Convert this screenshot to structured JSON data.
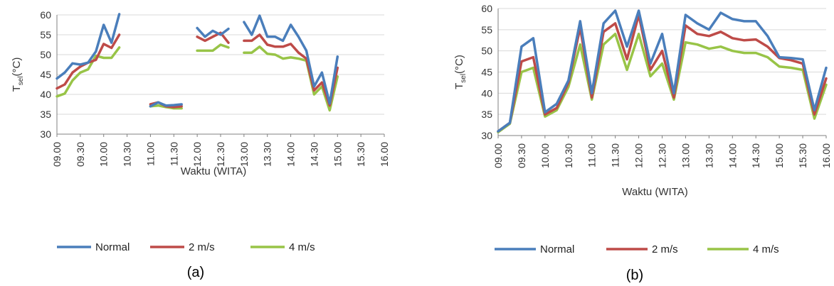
{
  "colors": {
    "normal": "#4a7ebb",
    "v2": "#be4b48",
    "v4": "#98c447",
    "grid": "#d9d9d9",
    "axis": "#808080"
  },
  "legend": [
    "Normal",
    "2 m/s",
    "4 m/s"
  ],
  "chart_data": [
    {
      "type": "line",
      "caption": "(a)",
      "xlabel": "Waktu (WITA)",
      "ylabel": "T",
      "ylabel_sub": "sel",
      "ylabel_unit": "(°C)",
      "ylim": [
        30,
        60
      ],
      "yticks": [
        30,
        35,
        40,
        45,
        50,
        55,
        60
      ],
      "grid": true,
      "legend_position": "bottom",
      "x_ticks": [
        "09.00",
        "09.30",
        "10.00",
        "10.30",
        "11.00",
        "11.30",
        "12.00",
        "12.30",
        "13.00",
        "13.30",
        "14.00",
        "14.30",
        "15.00",
        "15.30",
        "16.00"
      ],
      "x": [
        "09.00",
        "09.10",
        "09.20",
        "09.30",
        "09.40",
        "09.50",
        "10.00",
        "10.10",
        "10.20",
        "10.30",
        "10.40",
        "10.50",
        "11.00",
        "11.10",
        "11.20",
        "11.30",
        "11.40",
        "11.50",
        "12.00",
        "12.10",
        "12.20",
        "12.30",
        "12.40",
        "12.50",
        "13.00",
        "13.10",
        "13.20",
        "13.30",
        "13.40",
        "13.50",
        "14.00",
        "14.10",
        "14.20",
        "14.30",
        "14.40",
        "14.50",
        "15.00",
        "15.10",
        "15.20",
        "15.30",
        "15.40",
        "15.50",
        "16.00"
      ],
      "series": [
        {
          "name": "Normal",
          "values": [
            44,
            45.5,
            47.8,
            47.5,
            48,
            50.8,
            57.5,
            53,
            60.2,
            null,
            null,
            null,
            37,
            38,
            37.2,
            37.3,
            37.5,
            null,
            56.7,
            54.5,
            56,
            55,
            56.5,
            null,
            58.2,
            55,
            59.8,
            54.5,
            54.5,
            53.5,
            57.5,
            54.5,
            51,
            42,
            45.5,
            37.7,
            49.5,
            null,
            null,
            null,
            null,
            null,
            null
          ]
        },
        {
          "name": "2 m/s",
          "values": [
            41.5,
            42.5,
            45.5,
            47,
            48,
            48.7,
            52.7,
            51.7,
            55,
            null,
            null,
            null,
            37.5,
            38,
            37,
            36.8,
            37,
            null,
            54.5,
            53.5,
            54.5,
            55.5,
            53,
            null,
            53.5,
            53.5,
            55,
            52.5,
            52,
            52,
            52.7,
            50.5,
            49,
            41,
            43,
            37.2,
            46.7,
            null,
            null,
            null,
            null,
            null,
            null
          ]
        },
        {
          "name": "4 m/s",
          "values": [
            39.5,
            40.2,
            43.5,
            45.5,
            46.3,
            49.7,
            49.2,
            49.2,
            51.8,
            null,
            null,
            null,
            37,
            37.2,
            36.8,
            36.5,
            36.5,
            null,
            51,
            51,
            51,
            52.5,
            51.8,
            null,
            50.5,
            50.5,
            52,
            50.2,
            50,
            49,
            49.3,
            49,
            48.5,
            40,
            42,
            36,
            44.5,
            null,
            null,
            null,
            null,
            null,
            null
          ]
        }
      ]
    },
    {
      "type": "line",
      "caption": "(b)",
      "xlabel": "Waktu (WITA)",
      "ylabel": "T",
      "ylabel_sub": "sel",
      "ylabel_unit": "(°C)",
      "ylim": [
        30,
        60
      ],
      "yticks": [
        30,
        35,
        40,
        45,
        50,
        55,
        60
      ],
      "grid": true,
      "legend_position": "bottom",
      "x_ticks": [
        "09.00",
        "09.30",
        "10.00",
        "10.30",
        "11.00",
        "11.30",
        "12.00",
        "12.30",
        "13.00",
        "13.30",
        "14.00",
        "14.30",
        "15.00",
        "15.30",
        "16.00"
      ],
      "series": [
        {
          "name": "Normal",
          "values": [
            31,
            33,
            51,
            53,
            35.5,
            37.5,
            43,
            57,
            40,
            56.5,
            59.5,
            51,
            59.5,
            47,
            54,
            40,
            58.5,
            56.5,
            55,
            59,
            57.5,
            57,
            57,
            53.5,
            48.5,
            48.3,
            48,
            36,
            46
          ]
        },
        {
          "name": "2 m/s",
          "values": [
            31,
            33,
            47.5,
            48.5,
            35,
            36.5,
            42.5,
            55.5,
            39,
            54.5,
            56.5,
            48,
            58.5,
            45.5,
            50,
            39,
            56,
            54,
            53.5,
            54.5,
            53,
            52.5,
            52.7,
            51,
            48.3,
            47.8,
            47,
            35,
            43.5
          ]
        },
        {
          "name": "4 m/s",
          "values": [
            30.8,
            32.8,
            45,
            46,
            34.5,
            36,
            41.5,
            51.5,
            38.5,
            51.5,
            54,
            45.5,
            54,
            44,
            47,
            38.5,
            52,
            51.5,
            50.5,
            51,
            50,
            49.5,
            49.5,
            48.5,
            46.3,
            46,
            45.5,
            34,
            42
          ]
        }
      ]
    }
  ]
}
